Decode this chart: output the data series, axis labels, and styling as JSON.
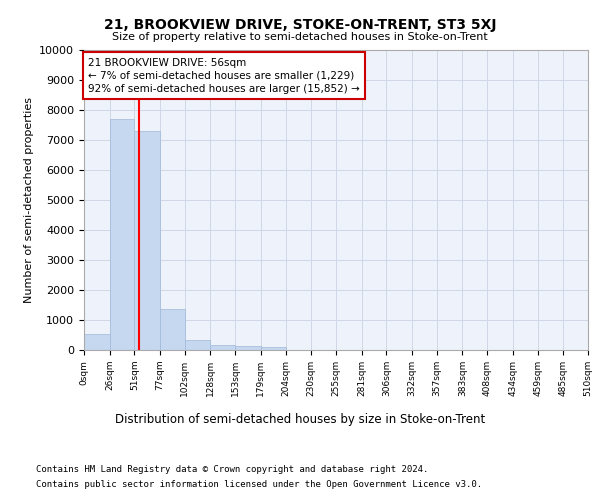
{
  "title": "21, BROOKVIEW DRIVE, STOKE-ON-TRENT, ST3 5XJ",
  "subtitle": "Size of property relative to semi-detached houses in Stoke-on-Trent",
  "xlabel": "Distribution of semi-detached houses by size in Stoke-on-Trent",
  "ylabel": "Number of semi-detached properties",
  "bar_edges": [
    0,
    26,
    51,
    77,
    102,
    128,
    153,
    179,
    204,
    230,
    255,
    281,
    306,
    332,
    357,
    383,
    408,
    434,
    459,
    485,
    510
  ],
  "bar_heights": [
    550,
    7700,
    7300,
    1380,
    320,
    165,
    130,
    100,
    0,
    0,
    0,
    0,
    0,
    0,
    0,
    0,
    0,
    0,
    0,
    0
  ],
  "bar_color": "#c5d8f0",
  "bar_edge_color": "#a0b8d8",
  "ylim": [
    0,
    10000
  ],
  "yticks": [
    0,
    1000,
    2000,
    3000,
    4000,
    5000,
    6000,
    7000,
    8000,
    9000,
    10000
  ],
  "xtick_labels": [
    "0sqm",
    "26sqm",
    "51sqm",
    "77sqm",
    "102sqm",
    "128sqm",
    "153sqm",
    "179sqm",
    "204sqm",
    "230sqm",
    "255sqm",
    "281sqm",
    "306sqm",
    "332sqm",
    "357sqm",
    "383sqm",
    "408sqm",
    "434sqm",
    "459sqm",
    "485sqm",
    "510sqm"
  ],
  "property_line_x": 56,
  "annotation_text": "21 BROOKVIEW DRIVE: 56sqm\n← 7% of semi-detached houses are smaller (1,229)\n92% of semi-detached houses are larger (15,852) →",
  "annotation_box_color": "#ffffff",
  "annotation_box_edge_color": "#cc0000",
  "grid_color": "#d0d8e8",
  "background_color": "#eef2fa",
  "footer_line1": "Contains HM Land Registry data © Crown copyright and database right 2024.",
  "footer_line2": "Contains public sector information licensed under the Open Government Licence v3.0."
}
